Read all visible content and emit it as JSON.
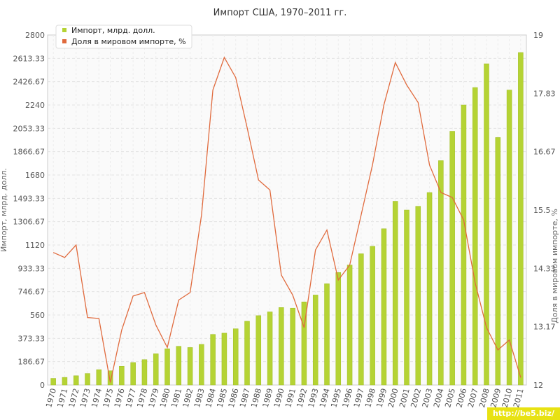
{
  "chart_data": {
    "type": "bar-line",
    "title": "Импорт США, 1970–2011 гг.",
    "ylabel": "Импорт, млрд. долл.",
    "ylabel2": "Доля в мировом импорте, %",
    "ylim": [
      0,
      2800
    ],
    "ylim2": [
      12,
      19
    ],
    "yticks": [
      "0",
      "186.67",
      "373.33",
      "560",
      "746.67",
      "933.33",
      "1120",
      "1306.67",
      "1493.33",
      "1680",
      "1866.67",
      "2053.33",
      "2240",
      "2426.67",
      "2613.33",
      "2800"
    ],
    "yticks2": [
      "12",
      "13.17",
      "14.33",
      "15.5",
      "16.67",
      "17.83",
      "19"
    ],
    "categories": [
      "1970",
      "1971",
      "1972",
      "1973",
      "1974",
      "1975",
      "1976",
      "1977",
      "1978",
      "1979",
      "1980",
      "1981",
      "1982",
      "1983",
      "1984",
      "1985",
      "1986",
      "1987",
      "1988",
      "1989",
      "1990",
      "1991",
      "1992",
      "1993",
      "1994",
      "1995",
      "1996",
      "1997",
      "1998",
      "1999",
      "2000",
      "2001",
      "2002",
      "2003",
      "2004",
      "2005",
      "2006",
      "2007",
      "2008",
      "2009",
      "2010",
      "2011"
    ],
    "legend_position": "top-left",
    "grid": true,
    "series": [
      {
        "name": "Импорт, млрд. долл.",
        "type": "bar",
        "axis": "left",
        "color": "#b5d334",
        "values": [
          53,
          61,
          74,
          92,
          123,
          114,
          150,
          180,
          203,
          250,
          290,
          310,
          300,
          325,
          405,
          415,
          450,
          510,
          555,
          585,
          620,
          615,
          665,
          720,
          810,
          900,
          960,
          1050,
          1110,
          1250,
          1470,
          1400,
          1430,
          1540,
          1795,
          2030,
          2240,
          2380,
          2570,
          1980,
          2360,
          2660
        ]
      },
      {
        "name": "Доля в мировом импорте, %",
        "type": "line",
        "axis": "right",
        "color": "#e06a3d",
        "values": [
          14.65,
          14.55,
          14.8,
          13.35,
          13.33,
          12.05,
          13.1,
          13.78,
          13.85,
          13.2,
          12.75,
          13.7,
          13.85,
          15.4,
          17.9,
          18.55,
          18.15,
          17.15,
          16.1,
          15.9,
          14.2,
          13.8,
          13.15,
          14.7,
          15.1,
          14.1,
          14.4,
          15.4,
          16.4,
          17.6,
          18.45,
          18.0,
          17.65,
          16.4,
          15.85,
          15.75,
          15.3,
          14.05,
          13.15,
          12.7,
          12.9,
          12.15
        ]
      }
    ]
  },
  "watermark": "http://be5.biz/"
}
